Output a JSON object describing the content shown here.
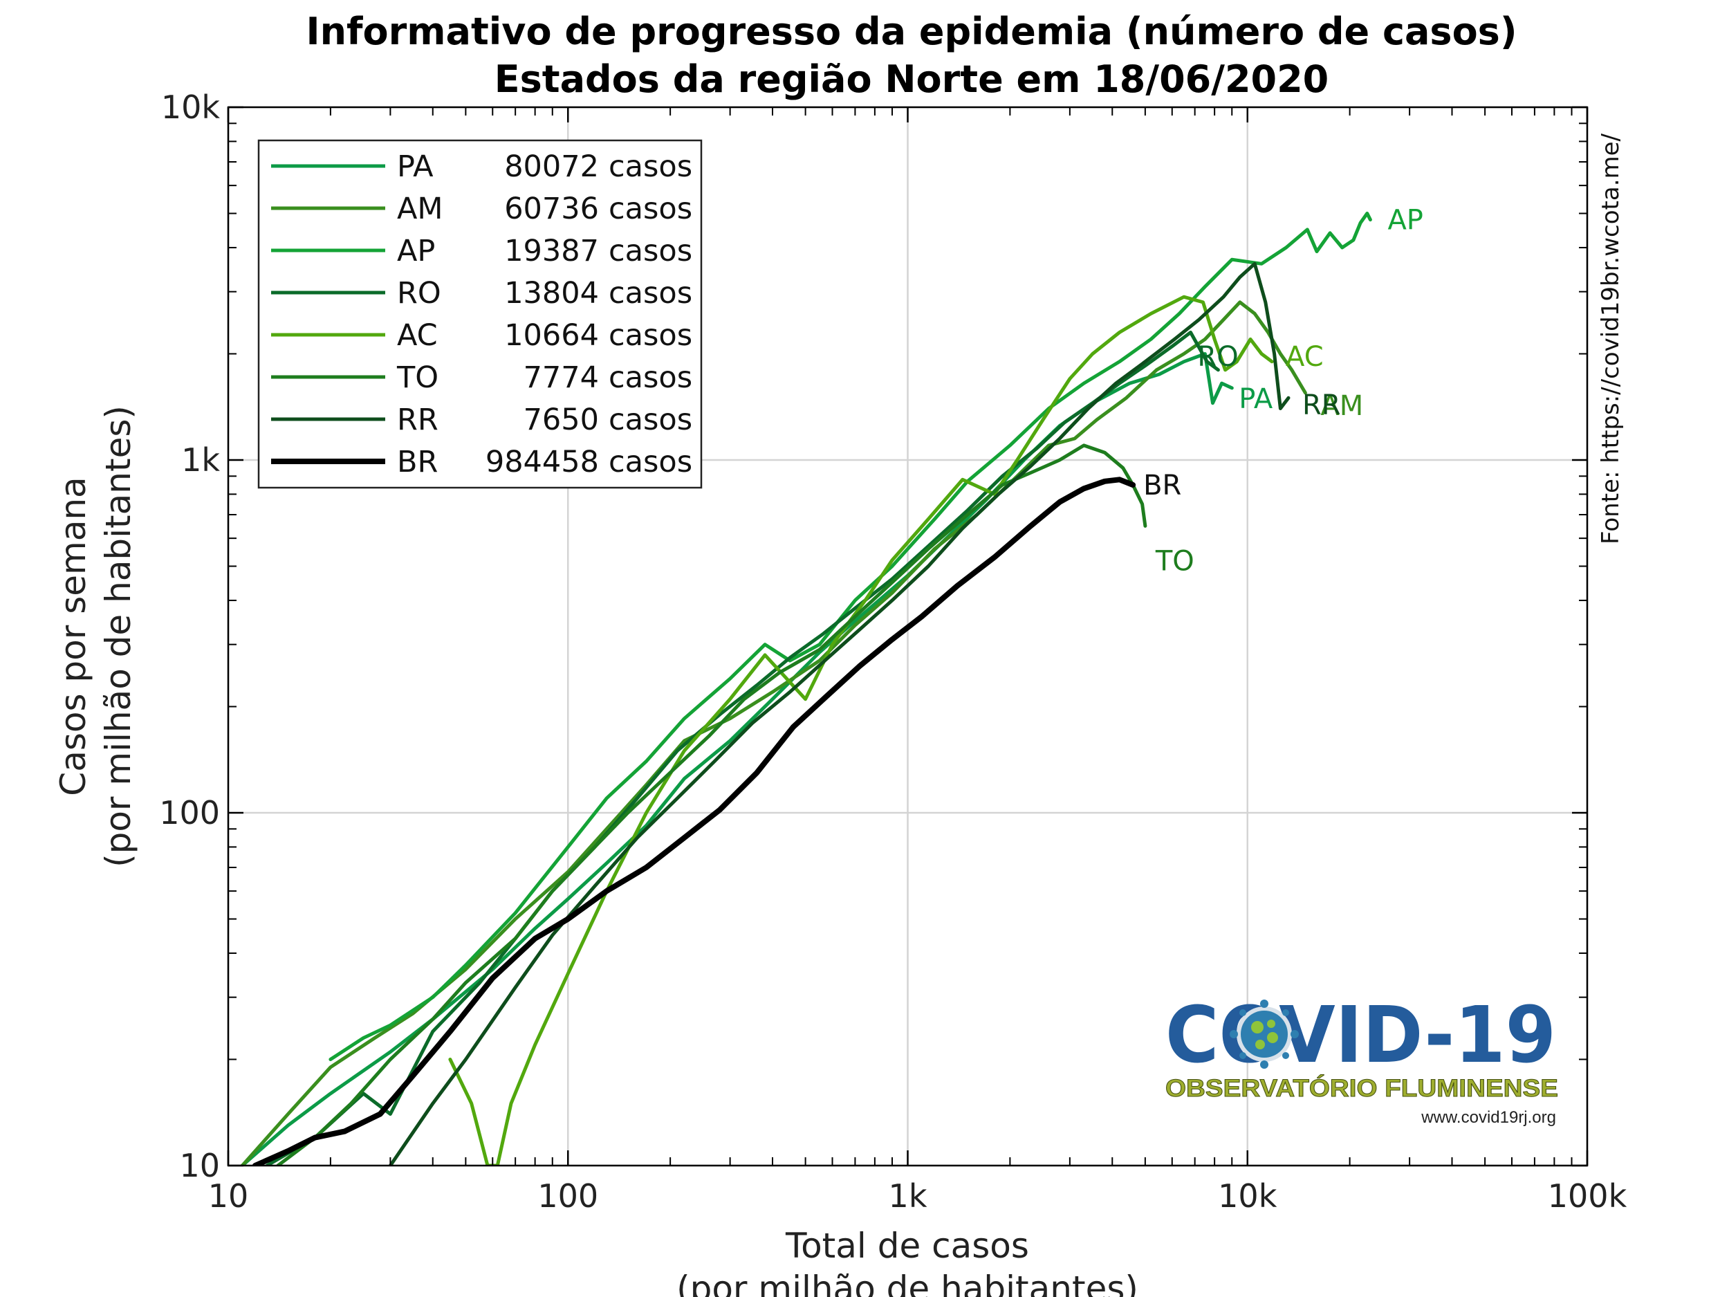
{
  "title_line1": "Informativo de progresso da epidemia (número de casos)",
  "title_line2": "Estados da região Norte em 18/06/2020",
  "source": "Fonte: https://covid19br.wcota.me/",
  "logo": {
    "title": "COVID-19",
    "subtitle": "OBSERVATÓRIO FLUMINENSE",
    "url": "www.covid19rj.org"
  },
  "chart_data": {
    "type": "line",
    "xscale": "log",
    "yscale": "log",
    "xlabel_line1": "Total de casos",
    "xlabel_line2": "(por milhão de habitantes)",
    "ylabel_line1": "Casos por semana",
    "ylabel_line2": "(por milhão de habitantes)",
    "xlim": [
      10,
      100000
    ],
    "ylim": [
      10,
      10000
    ],
    "x_ticks": [
      {
        "value": 10,
        "label": "10"
      },
      {
        "value": 100,
        "label": "100"
      },
      {
        "value": 1000,
        "label": "1k"
      },
      {
        "value": 10000,
        "label": "10k"
      },
      {
        "value": 100000,
        "label": "100k"
      }
    ],
    "y_ticks": [
      {
        "value": 10,
        "label": "10"
      },
      {
        "value": 100,
        "label": "100"
      },
      {
        "value": 1000,
        "label": "1k"
      },
      {
        "value": 10000,
        "label": "10k"
      }
    ],
    "grid": true,
    "legend_position": "top-left",
    "series": [
      {
        "name": "PA",
        "cases": "80072",
        "color": "#0c9b47",
        "width": 5,
        "end_label": "PA",
        "points": [
          [
            11,
            10
          ],
          [
            15,
            13
          ],
          [
            20,
            16
          ],
          [
            30,
            21
          ],
          [
            40,
            26
          ],
          [
            60,
            36
          ],
          [
            80,
            47
          ],
          [
            100,
            57
          ],
          [
            130,
            72
          ],
          [
            170,
            92
          ],
          [
            220,
            125
          ],
          [
            300,
            160
          ],
          [
            400,
            210
          ],
          [
            550,
            285
          ],
          [
            700,
            350
          ],
          [
            1000,
            470
          ],
          [
            1300,
            600
          ],
          [
            1700,
            770
          ],
          [
            2200,
            1000
          ],
          [
            2800,
            1250
          ],
          [
            3500,
            1450
          ],
          [
            4500,
            1650
          ],
          [
            5500,
            1750
          ],
          [
            6500,
            1900
          ],
          [
            7500,
            2000
          ],
          [
            7900,
            1450
          ],
          [
            8400,
            1650
          ],
          [
            9000,
            1600
          ]
        ]
      },
      {
        "name": "AM",
        "cases": "60736",
        "color": "#3a8f1e",
        "width": 5,
        "end_label": "AM",
        "points": [
          [
            11,
            10
          ],
          [
            15,
            14
          ],
          [
            20,
            19
          ],
          [
            27,
            23
          ],
          [
            35,
            27
          ],
          [
            50,
            36
          ],
          [
            70,
            50
          ],
          [
            100,
            68
          ],
          [
            130,
            90
          ],
          [
            170,
            120
          ],
          [
            220,
            160
          ],
          [
            300,
            185
          ],
          [
            400,
            220
          ],
          [
            550,
            270
          ],
          [
            700,
            340
          ],
          [
            900,
            420
          ],
          [
            1200,
            560
          ],
          [
            1600,
            700
          ],
          [
            2100,
            900
          ],
          [
            2600,
            1100
          ],
          [
            3100,
            1150
          ],
          [
            3600,
            1300
          ],
          [
            4400,
            1500
          ],
          [
            5400,
            1800
          ],
          [
            6500,
            2000
          ],
          [
            7500,
            2200
          ],
          [
            8500,
            2500
          ],
          [
            9500,
            2800
          ],
          [
            10500,
            2600
          ],
          [
            11500,
            2300
          ],
          [
            12500,
            2000
          ],
          [
            13500,
            1800
          ],
          [
            14800,
            1550
          ]
        ]
      },
      {
        "name": "AP",
        "cases": "19387",
        "color": "#14a336",
        "width": 5,
        "end_label": "AP",
        "points": [
          [
            20,
            20
          ],
          [
            25,
            23
          ],
          [
            30,
            25
          ],
          [
            40,
            30
          ],
          [
            50,
            37
          ],
          [
            70,
            52
          ],
          [
            100,
            80
          ],
          [
            130,
            110
          ],
          [
            170,
            140
          ],
          [
            220,
            185
          ],
          [
            300,
            240
          ],
          [
            380,
            300
          ],
          [
            450,
            270
          ],
          [
            550,
            300
          ],
          [
            700,
            400
          ],
          [
            900,
            500
          ],
          [
            1200,
            680
          ],
          [
            1500,
            870
          ],
          [
            2000,
            1100
          ],
          [
            2600,
            1400
          ],
          [
            3300,
            1650
          ],
          [
            4200,
            1900
          ],
          [
            5200,
            2200
          ],
          [
            6300,
            2600
          ],
          [
            7500,
            3100
          ],
          [
            9000,
            3700
          ],
          [
            11000,
            3600
          ],
          [
            13000,
            4000
          ],
          [
            15000,
            4500
          ],
          [
            16000,
            3900
          ],
          [
            17500,
            4400
          ],
          [
            19000,
            4000
          ],
          [
            20500,
            4200
          ],
          [
            21500,
            4700
          ],
          [
            22500,
            5000
          ],
          [
            23000,
            4800
          ]
        ]
      },
      {
        "name": "RO",
        "cases": "13804",
        "color": "#0b6b2a",
        "width": 5,
        "end_label": "RO",
        "points": [
          [
            13,
            10
          ],
          [
            18,
            12
          ],
          [
            25,
            16
          ],
          [
            30,
            14
          ],
          [
            40,
            24
          ],
          [
            55,
            33
          ],
          [
            70,
            44
          ],
          [
            90,
            60
          ],
          [
            120,
            80
          ],
          [
            160,
            110
          ],
          [
            210,
            150
          ],
          [
            280,
            190
          ],
          [
            360,
            230
          ],
          [
            450,
            275
          ],
          [
            560,
            320
          ],
          [
            700,
            380
          ],
          [
            900,
            460
          ],
          [
            1150,
            570
          ],
          [
            1500,
            720
          ],
          [
            1900,
            900
          ],
          [
            2400,
            1080
          ],
          [
            2900,
            1280
          ],
          [
            3500,
            1450
          ],
          [
            4200,
            1650
          ],
          [
            5000,
            1850
          ],
          [
            6000,
            2100
          ],
          [
            6800,
            2300
          ],
          [
            7600,
            1900
          ],
          [
            8200,
            1800
          ]
        ]
      },
      {
        "name": "AC",
        "cases": "10664",
        "color": "#52a80e",
        "width": 5,
        "end_label": "AC",
        "points": [
          [
            45,
            20
          ],
          [
            52,
            15
          ],
          [
            58,
            10
          ],
          [
            62,
            10
          ],
          [
            68,
            15
          ],
          [
            80,
            22
          ],
          [
            100,
            35
          ],
          [
            130,
            60
          ],
          [
            170,
            100
          ],
          [
            220,
            150
          ],
          [
            300,
            210
          ],
          [
            380,
            280
          ],
          [
            500,
            210
          ],
          [
            600,
            300
          ],
          [
            750,
            400
          ],
          [
            900,
            520
          ],
          [
            1150,
            680
          ],
          [
            1450,
            880
          ],
          [
            1800,
            800
          ],
          [
            2100,
            1000
          ],
          [
            2500,
            1300
          ],
          [
            3000,
            1700
          ],
          [
            3500,
            2000
          ],
          [
            4200,
            2300
          ],
          [
            5200,
            2600
          ],
          [
            6500,
            2900
          ],
          [
            7400,
            2800
          ],
          [
            8000,
            2200
          ],
          [
            8600,
            1800
          ],
          [
            9300,
            1900
          ],
          [
            10200,
            2200
          ],
          [
            11000,
            2000
          ],
          [
            11800,
            1900
          ]
        ]
      },
      {
        "name": "TO",
        "cases": "7774",
        "color": "#1e7d1e",
        "width": 5,
        "end_label": "TO",
        "points": [
          [
            14,
            10
          ],
          [
            18,
            12
          ],
          [
            23,
            15
          ],
          [
            30,
            20
          ],
          [
            40,
            26
          ],
          [
            50,
            33
          ],
          [
            70,
            44
          ],
          [
            90,
            60
          ],
          [
            120,
            80
          ],
          [
            150,
            100
          ],
          [
            200,
            130
          ],
          [
            260,
            165
          ],
          [
            330,
            210
          ],
          [
            420,
            250
          ],
          [
            550,
            290
          ],
          [
            700,
            360
          ],
          [
            900,
            450
          ],
          [
            1150,
            560
          ],
          [
            1500,
            700
          ],
          [
            1900,
            850
          ],
          [
            2300,
            920
          ],
          [
            2800,
            1000
          ],
          [
            3300,
            1100
          ],
          [
            3800,
            1050
          ],
          [
            4300,
            950
          ],
          [
            4600,
            850
          ],
          [
            4900,
            750
          ],
          [
            5000,
            650
          ]
        ]
      },
      {
        "name": "RR",
        "cases": "7650",
        "color": "#0e4d1c",
        "width": 5,
        "end_label": "RR",
        "points": [
          [
            30,
            10
          ],
          [
            40,
            15
          ],
          [
            50,
            20
          ],
          [
            70,
            32
          ],
          [
            90,
            45
          ],
          [
            120,
            62
          ],
          [
            160,
            85
          ],
          [
            210,
            110
          ],
          [
            270,
            140
          ],
          [
            350,
            180
          ],
          [
            450,
            220
          ],
          [
            570,
            270
          ],
          [
            720,
            330
          ],
          [
            900,
            400
          ],
          [
            1150,
            500
          ],
          [
            1450,
            640
          ],
          [
            1850,
            800
          ],
          [
            2300,
            960
          ],
          [
            2800,
            1150
          ],
          [
            3400,
            1400
          ],
          [
            4100,
            1650
          ],
          [
            5000,
            1900
          ],
          [
            6100,
            2200
          ],
          [
            7200,
            2500
          ],
          [
            8500,
            2900
          ],
          [
            9500,
            3300
          ],
          [
            10500,
            3600
          ],
          [
            11300,
            2800
          ],
          [
            12000,
            2000
          ],
          [
            12500,
            1400
          ],
          [
            13200,
            1500
          ]
        ]
      },
      {
        "name": "BR",
        "cases": "984458",
        "color": "#000000",
        "width": 8,
        "end_label": "BR",
        "points": [
          [
            12,
            10
          ],
          [
            15,
            11
          ],
          [
            18,
            12
          ],
          [
            22,
            12.5
          ],
          [
            28,
            14
          ],
          [
            35,
            18
          ],
          [
            45,
            24
          ],
          [
            60,
            34
          ],
          [
            80,
            44
          ],
          [
            100,
            50
          ],
          [
            130,
            60
          ],
          [
            170,
            70
          ],
          [
            220,
            85
          ],
          [
            280,
            102
          ],
          [
            360,
            130
          ],
          [
            460,
            175
          ],
          [
            580,
            215
          ],
          [
            720,
            260
          ],
          [
            900,
            310
          ],
          [
            1100,
            360
          ],
          [
            1400,
            440
          ],
          [
            1800,
            530
          ],
          [
            2300,
            650
          ],
          [
            2800,
            760
          ],
          [
            3300,
            830
          ],
          [
            3800,
            870
          ],
          [
            4200,
            880
          ],
          [
            4600,
            850
          ]
        ]
      }
    ]
  }
}
